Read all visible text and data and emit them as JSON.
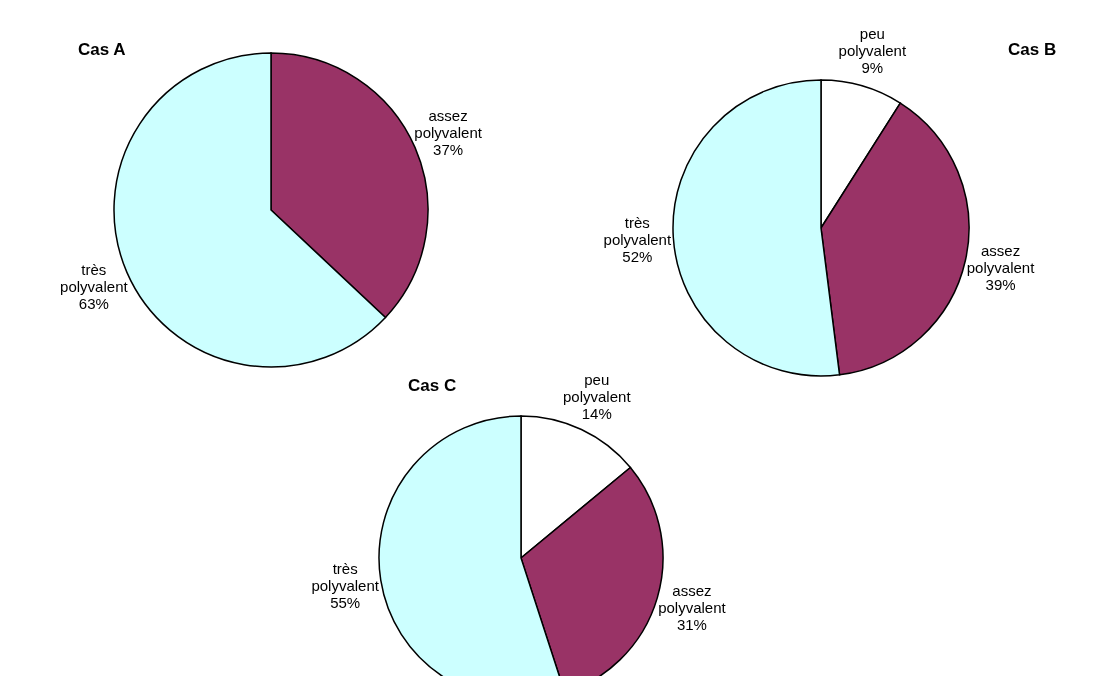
{
  "chart_data": [
    {
      "type": "pie",
      "title": "Cas A",
      "categories": [
        "assez polyvalent",
        "très polyvalent"
      ],
      "values": [
        37,
        63
      ],
      "colors": [
        "#993366",
        "#ccffff"
      ],
      "value_labels": [
        "37%",
        "63%"
      ]
    },
    {
      "type": "pie",
      "title": "Cas B",
      "categories": [
        "peu polyvalent",
        "assez polyvalent",
        "très polyvalent"
      ],
      "values": [
        9,
        39,
        52
      ],
      "colors": [
        "#ffffff",
        "#993366",
        "#ccffff"
      ],
      "value_labels": [
        "9%",
        "39%",
        "52%"
      ]
    },
    {
      "type": "pie",
      "title": "Cas C",
      "categories": [
        "peu polyvalent",
        "assez polyvalent",
        "très polyvalent"
      ],
      "values": [
        14,
        31,
        55
      ],
      "colors": [
        "#ffffff",
        "#993366",
        "#ccffff"
      ],
      "value_labels": [
        "14%",
        "31%",
        "55%"
      ]
    }
  ]
}
